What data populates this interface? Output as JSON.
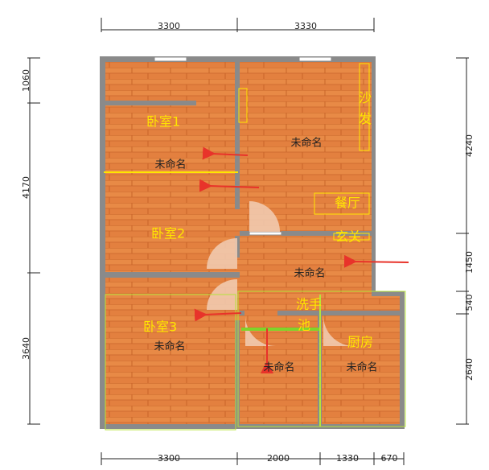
{
  "dimensions": {
    "top": [
      "3300",
      "3330"
    ],
    "left": [
      "1060",
      "4170",
      "3640"
    ],
    "right": [
      "4240",
      "1450",
      "540",
      "2640"
    ],
    "bottom": [
      "3300",
      "2000",
      "1330",
      "670"
    ]
  },
  "rooms": {
    "bedroom1": "卧室1",
    "bedroom2": "卧室2",
    "bedroom3": "卧室3",
    "sofa": "沙发",
    "dining": "餐厅",
    "entrance": "玄关",
    "sink": [
      "洗手",
      "池"
    ],
    "kitchen": "厨房"
  },
  "unnamed": [
    "未命名",
    "未命名",
    "未命名",
    "未命名",
    "未命名",
    "未命名"
  ]
}
